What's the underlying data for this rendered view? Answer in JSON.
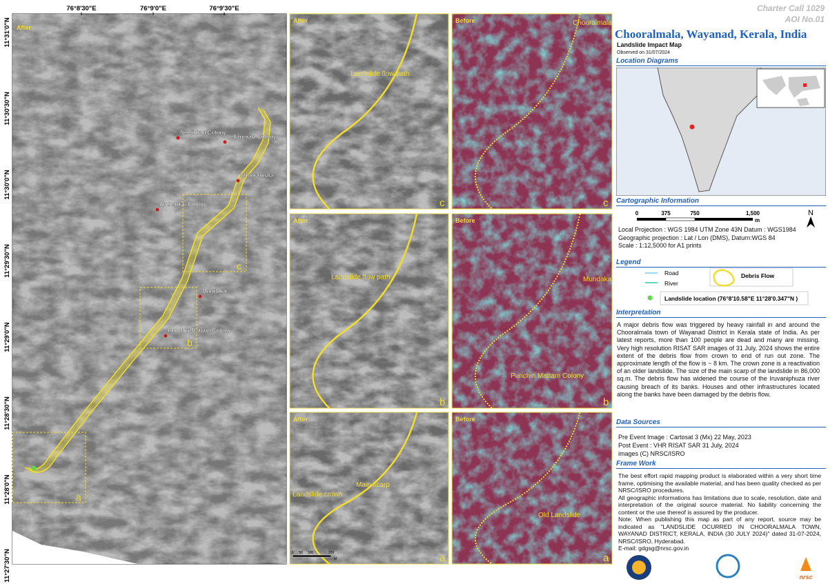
{
  "header": {
    "charter": "Charter Call 1029",
    "aoi": "AOI No.01",
    "title": "Chooralmala, Wayanad, Kerala, India",
    "subtitle": "Landslide Impact Map",
    "observed": "Observed on 31/07/2024"
  },
  "main_map": {
    "label": "After",
    "x_ticks": [
      "76°8'30\"E",
      "76°9'0\"E",
      "76°9'30\"E"
    ],
    "y_ticks": [
      "11°31'0\"N",
      "11°30'30\"N",
      "11°30'0\"N",
      "11°29'30\"N",
      "11°29'0\"N",
      "11°28'30\"N",
      "11°28'0\"N",
      "11°27'30\"N"
    ],
    "places": [
      "Neelikkap Colony",
      "Vellarimala Colony",
      "Chooralmala",
      "Ambedkar Colony",
      "Mundakai",
      "Punchiri Mattam Colony"
    ],
    "insets": [
      "a",
      "b",
      "c"
    ]
  },
  "panels": [
    {
      "label": "After",
      "letter": "c",
      "notes": [
        "Landslide flow path"
      ]
    },
    {
      "label": "Before",
      "letter": "c",
      "notes": [
        "Chooralmala"
      ]
    },
    {
      "label": "After",
      "letter": "b",
      "notes": [
        "Landslide flow path"
      ]
    },
    {
      "label": "Before",
      "letter": "b",
      "notes": [
        "Mundakai",
        "Punchiri Mattam Colony"
      ]
    },
    {
      "label": "After",
      "letter": "a",
      "notes": [
        "Landslide crown",
        "Main scarp"
      ],
      "scale": [
        "0",
        "50",
        "100",
        "200"
      ],
      "unit": "M"
    },
    {
      "label": "Before",
      "letter": "a",
      "notes": [
        "Old Landslide"
      ]
    }
  ],
  "location": {
    "title": "Location Diagrams"
  },
  "cartographic": {
    "title": "Cartographic Information",
    "scale": [
      "0",
      "375",
      "750",
      "1,500"
    ],
    "unit": "m",
    "north": "N",
    "lines": [
      "Local Projection : WGS 1984 UTM Zone 43N Datum : WGS1984",
      "Geographic projection : Lat / Lon (DMS), Daturn:WGS 84",
      "Scale : 1:12,5000 for A1 prints"
    ]
  },
  "legend": {
    "title": "Legend",
    "items": [
      "Road",
      "River",
      "Debris Flow",
      "Landslide location (76°8'10.58\"E  11°28'0.347\"N )"
    ]
  },
  "interpretation": {
    "title": "Interpretation",
    "text": "A major debris flow was triggered by heavy rainfall in and around the Chooralmala town of Wayanad District in Kerala state of India. As per latest reports, more than 100 people are dead and many are missing.  Very high resolution RISAT SAR images of 31 July, 2024 shows the entire extent of the debris flow from crown to end of run out zone. The approximate length of the flow is ~ 8 km. The crown zone is a reactivation of an older landslide. The size of the main scarp of the landslide in 86,000 sq.m. The debris flow has widened the course of the Iruvaniphuza river causing breach of its banks. Houses and other infrastructures located along the banks have been damaged by the debris flow."
  },
  "data_sources": {
    "title": "Data Sources",
    "lines": [
      "Pre Event Image : Cartosat  3 (Mx) 22 May, 2023",
      "Post Event : VHR RISAT SAR 31 July, 2024",
      "images (C) NRSC/ISRO"
    ]
  },
  "frame_work": {
    "title": "Frame Work",
    "paragraphs": [
      "The best effort rapid mapping product is elaborated within a very short time frame, optimising the available material, and has been quality checked as per NRSC/ISRO procedures.",
      "All geographic informations has limitations due to scale, resolution, date and interpretation of the original source material. No liability concerning the content or the use thereof is assured by the producer.",
      "Note: When publishing this map as part of any report, source may be indicated as \"LANDSLIDE OCURRED IN CHOORALMALA TOWN, WAYANAD DISTRICT, KERALA, INDIA (30 JULY 2024)\" dated 31-07-2024, NRSC/ISRO, Hyderabad.",
      "E-mail: gdgsg@nrsc.gov.in"
    ]
  },
  "logos": {
    "nrsc": "nrsc"
  }
}
